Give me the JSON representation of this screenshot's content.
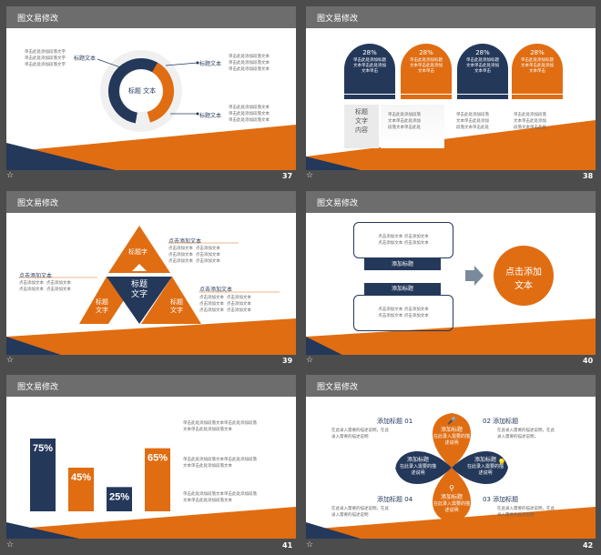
{
  "header_title": "图文易修改",
  "slides": [
    {
      "number": "37"
    },
    {
      "number": "38"
    },
    {
      "number": "39"
    },
    {
      "number": "40"
    },
    {
      "number": "41"
    },
    {
      "number": "42"
    }
  ],
  "s37": {
    "left_text": [
      "单击此处添加段落文字",
      "单击此处添加段落文字",
      "单击此处添加段落文字"
    ],
    "left_label": "标题文本",
    "center_label": "标题 文本",
    "right_label_1": "标题文本",
    "right_label_2": "标题文本",
    "right_text_1": [
      "单击此处添加段落文本",
      "单击此处添加段落文本",
      "单击此处添加段落文本"
    ],
    "right_text_2": [
      "单击此处添加段落文本",
      "单击此处添加段落文本",
      "单击此处添加段落文本"
    ]
  },
  "s38": {
    "cards": [
      {
        "pct": "28%",
        "lines": [
          "单击此处添加标题",
          "文本单击此处添加",
          "文本单击"
        ]
      },
      {
        "pct": "28%",
        "lines": [
          "单击此处添加标题",
          "文本单击此处添加",
          "文本单击"
        ]
      },
      {
        "pct": "28%",
        "lines": [
          "单击此处添加标题",
          "文本单击此处添加",
          "文本单击"
        ]
      },
      {
        "pct": "28%",
        "lines": [
          "单击此处添加标题",
          "文本单击此处添加",
          "文本单击"
        ]
      }
    ],
    "side_label": [
      "标题",
      "文字",
      "内容"
    ],
    "cols": [
      [
        "单击此处添加段落",
        "文本单击此处添加",
        "段落文本单击此处"
      ],
      [
        "单击此处添加段落",
        "文本单击此处添加",
        "段落文本单击此处"
      ],
      [
        "单击此处添加段落",
        "文本单击此处添加",
        "段落文本单击此处"
      ]
    ]
  },
  "s39": {
    "top_label": "标题字",
    "center_label": "标题\n文字",
    "left_tri": "标题\n文字",
    "right_tri": "标题\n文字",
    "right_head_1": "点击添加文本",
    "left_head": "点击添加文本",
    "right_head_2": "点击添加文本",
    "pair": [
      "点击添加文本",
      "点击添加文本"
    ]
  },
  "s40": {
    "box_text": [
      "点击添加文本 点击添加文本",
      "点击添加文本 点击添加文本",
      "点击添加文本 点击添加文本"
    ],
    "btn_1": "添加标题",
    "btn_2": "添加标题",
    "circle_text": [
      "点击添加",
      "文本"
    ]
  },
  "s41": {
    "bars": [
      {
        "value": 75,
        "label": "75%",
        "color": "#24385a"
      },
      {
        "value": 45,
        "label": "45%",
        "color": "#e06d12"
      },
      {
        "value": 25,
        "label": "25%",
        "color": "#24385a"
      },
      {
        "value": 65,
        "label": "65%",
        "color": "#e06d12"
      }
    ],
    "notes": [
      [
        "单击此处添加段落文本单击此处添加段落",
        "文本单击此处添加段落文本"
      ],
      [
        "单击此处添加段落文本单击此处添加段落",
        "文本单击此处添加段落文本"
      ],
      [
        "单击此处添加段落文本单击此处添加段落",
        "文本单击此处添加段落文本"
      ]
    ]
  },
  "s42": {
    "items": [
      {
        "title": "添加标题",
        "num": "01",
        "desc": [
          "在此录入需要的描述说明，在此",
          "录入需要的描述说明"
        ]
      },
      {
        "title": "添加标题",
        "num": "02",
        "desc": [
          "在此录入需要的描述说明，在此",
          "录入需要的描述说明，"
        ]
      },
      {
        "title": "添加标题",
        "num": "04",
        "desc": [
          "在此录入需要的描述说明，在此",
          "录入需要的描述说明"
        ]
      },
      {
        "title": "添加标题",
        "num": "03",
        "desc": [
          "在此录入需要的描述说明，在此",
          "录入需要的描述说明"
        ]
      }
    ],
    "petals": [
      {
        "title": "添加标题",
        "sub": "在此录入需要的描\n述说明"
      },
      {
        "title": "添加标题",
        "sub": "在此录入需要的描\n述说明"
      },
      {
        "title": "添加标题",
        "sub": "在此录入需要的描\n述说明"
      },
      {
        "title": "添加标题",
        "sub": "在此录入需要的描\n述说明"
      }
    ]
  },
  "colors": {
    "navy": "#24385a",
    "orange": "#e06d12",
    "gray": "#6a6a6a",
    "bg": "#4c4c4c"
  }
}
